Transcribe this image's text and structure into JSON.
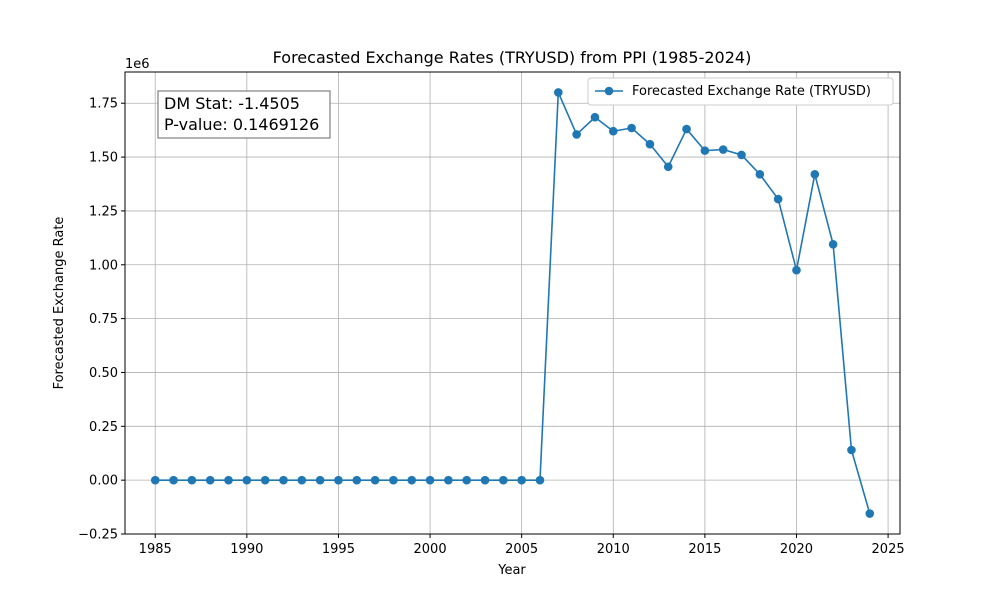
{
  "chart_data": {
    "type": "line",
    "title": "Forecasted Exchange Rates (TRYUSD) from PPI (1985-2024)",
    "xlabel": "Year",
    "ylabel": "Forecasted Exchange Rate",
    "y_offset_label": "1e6",
    "y_scale": 1000000,
    "xlim": [
      1983.35,
      2025.65
    ],
    "ylim": [
      -250000,
      1895000
    ],
    "x_ticks": [
      1985,
      1990,
      1995,
      2000,
      2005,
      2010,
      2015,
      2020,
      2025
    ],
    "y_ticks": [
      -250000,
      0,
      250000,
      500000,
      750000,
      1000000,
      1250000,
      1500000,
      1750000
    ],
    "y_tick_labels": [
      "−0.25",
      "0.00",
      "0.25",
      "0.50",
      "0.75",
      "1.00",
      "1.25",
      "1.50",
      "1.75"
    ],
    "grid": true,
    "legend_position": "top-right",
    "series": [
      {
        "name": "Forecasted Exchange Rate (TRYUSD)",
        "color": "#1f77b4",
        "marker": "circle",
        "x": [
          1985,
          1986,
          1987,
          1988,
          1989,
          1990,
          1991,
          1992,
          1993,
          1994,
          1995,
          1996,
          1997,
          1998,
          1999,
          2000,
          2001,
          2002,
          2003,
          2004,
          2005,
          2006,
          2007,
          2008,
          2009,
          2010,
          2011,
          2012,
          2013,
          2014,
          2015,
          2016,
          2017,
          2018,
          2019,
          2020,
          2021,
          2022,
          2023,
          2024
        ],
        "values": [
          0,
          0,
          0,
          0,
          0,
          0,
          0,
          0,
          0,
          0,
          0,
          0,
          0,
          0,
          0,
          0,
          0,
          0,
          0,
          0,
          0,
          0,
          1800000,
          1605000,
          1685000,
          1620000,
          1635000,
          1560000,
          1455000,
          1630000,
          1530000,
          1535000,
          1510000,
          1420000,
          1305000,
          975000,
          1420000,
          1095000,
          140000,
          -155000
        ]
      }
    ],
    "annotations": [
      {
        "line1": "DM Stat: -1.4505",
        "line2": "P-value: 0.1469126"
      }
    ]
  }
}
